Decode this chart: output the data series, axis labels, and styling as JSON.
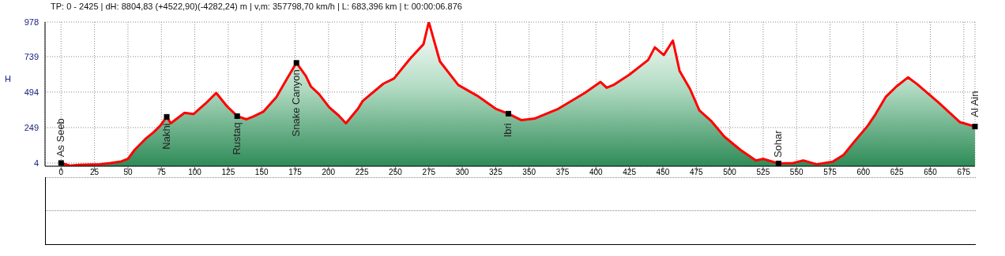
{
  "chart_data": {
    "type": "area",
    "title": "TP: 0 - 2425 | dH: 8804,83  (+4522,90)(-4282,24) m | v,m: 357798,70 km/h | L: 683,396 km | t: 00:00:06.876",
    "ylabel": "H",
    "x": [
      0,
      6.7,
      13.6,
      29.3,
      37,
      45,
      50,
      55,
      63,
      69,
      74,
      79,
      82,
      92.3,
      99,
      108,
      116,
      124,
      131.7,
      138.6,
      143.5,
      151.4,
      161,
      169,
      176,
      183,
      186.8,
      193,
      200.6,
      207.5,
      213,
      222,
      225.6,
      241,
      249,
      261,
      271,
      275,
      283.3,
      297,
      311,
      325,
      334.5,
      344.3,
      354,
      371.9,
      391.6,
      403.4,
      408,
      413,
      425,
      439,
      444,
      450.7,
      457.5,
      462.5,
      470.4,
      477.3,
      486,
      496,
      508,
      519.6,
      525,
      536.5,
      547.3,
      555,
      565,
      577,
      585,
      593,
      603,
      609,
      616.6,
      624.5,
      633.4,
      640,
      656,
      672,
      683.4
    ],
    "series": [
      {
        "color": "#ff0000",
        "values": [
          4,
          -14,
          -9,
          -4,
          4,
          15,
          33,
          95,
          170,
          215,
          260,
          323,
          279,
          351,
          342,
          415,
          488,
          397,
          328,
          306,
          324,
          360,
          460,
          588,
          696,
          606,
          533,
          479,
          388,
          333,
          279,
          379,
          433,
          552,
          588,
          725,
          825,
          978,
          706,
          543,
          470,
          379,
          345,
          300,
          311,
          379,
          488,
          564,
          524,
          543,
          615,
          716,
          803,
          750,
          850,
          641,
          514,
          368,
          296,
          186,
          95,
          22,
          32,
          1,
          4,
          22,
          -5,
          13,
          59,
          150,
          259,
          341,
          460,
          532,
          596,
          550,
          423,
          287,
          256
        ]
      }
    ],
    "xlim": [
      -12,
      683.4
    ],
    "xticks": [
      0,
      25,
      50,
      75,
      100,
      125,
      150,
      175,
      200,
      225,
      250,
      275,
      300,
      325,
      350,
      375,
      400,
      425,
      450,
      475,
      500,
      525,
      550,
      575,
      600,
      625,
      650,
      675
    ],
    "ylim": [
      -18,
      978
    ],
    "yticks": [
      4,
      249,
      494,
      739,
      978
    ],
    "grid": true,
    "line_style": "solid",
    "marker": "none",
    "annotations": [
      {
        "text": "As Seeb",
        "x": 0,
        "y": 4
      },
      {
        "text": "Nakhi",
        "x": 79,
        "y": 323
      },
      {
        "text": "Rustaq",
        "x": 131.7,
        "y": 328
      },
      {
        "text": "Snake Canyon",
        "x": 176,
        "y": 696
      },
      {
        "text": "Ibri",
        "x": 334.5,
        "y": 345
      },
      {
        "text": "Sohar",
        "x": 536.5,
        "y": 1
      },
      {
        "text": "Al Ain",
        "x": 683.4,
        "y": 256
      }
    ]
  }
}
